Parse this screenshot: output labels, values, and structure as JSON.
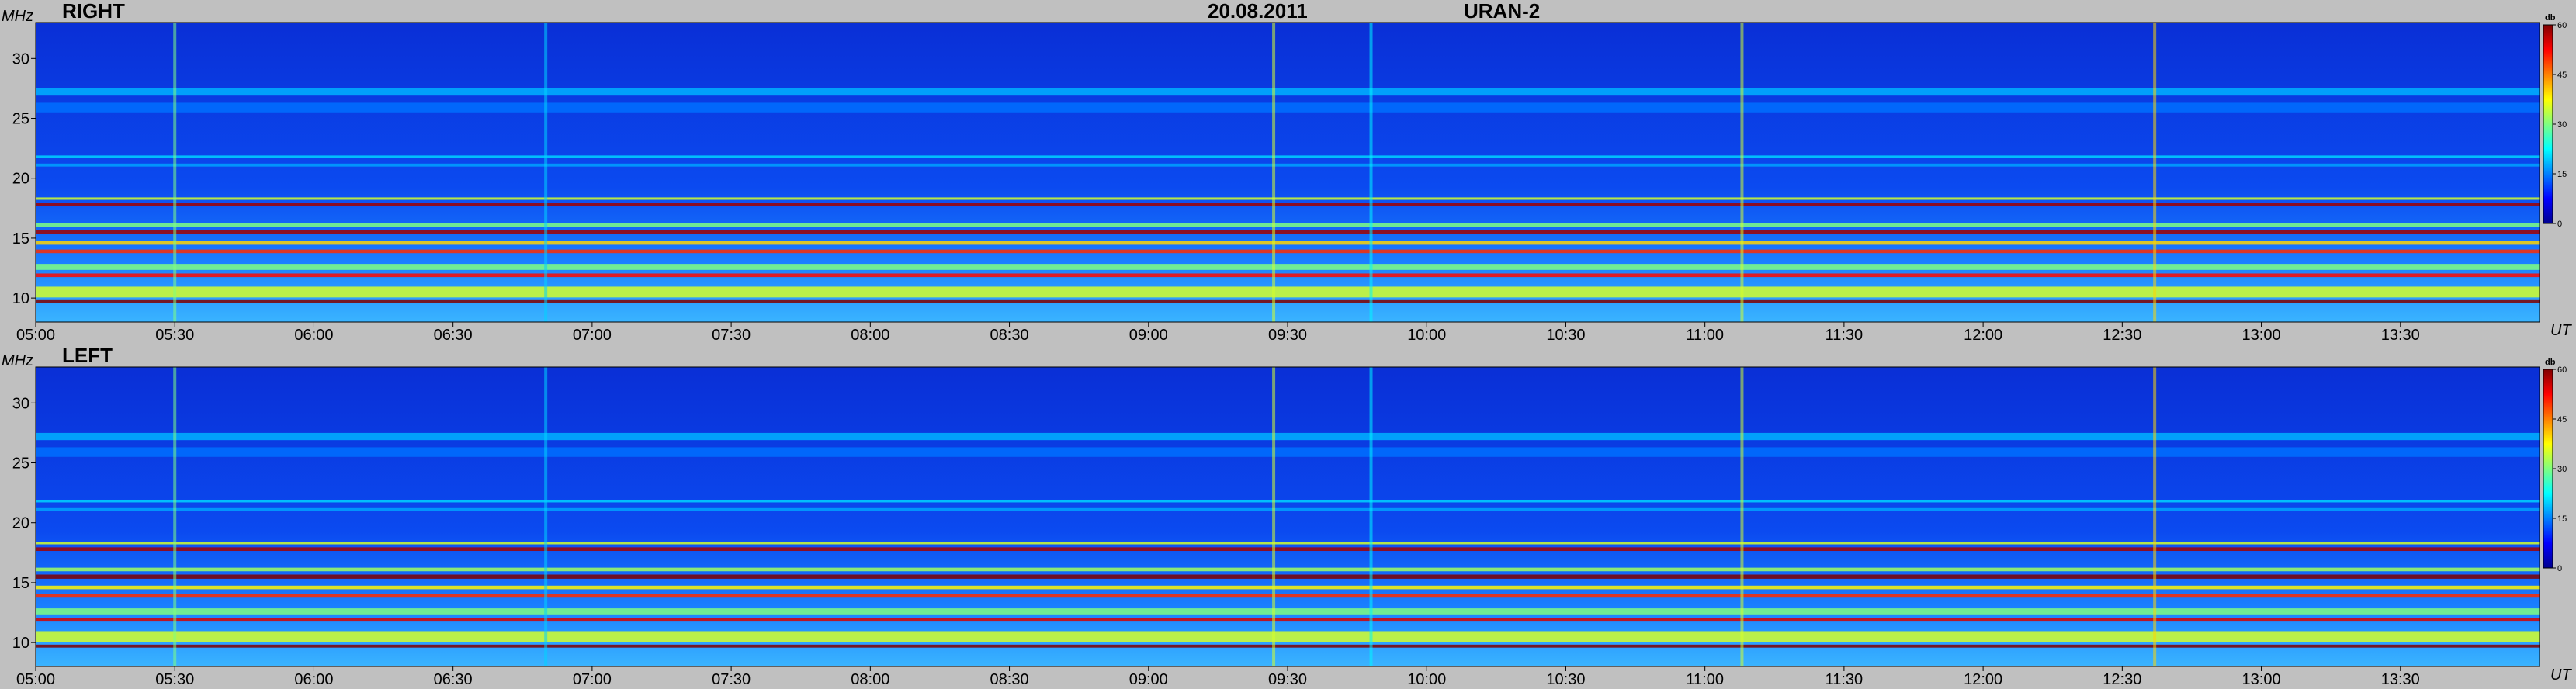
{
  "header": {
    "date": "20.08.2011",
    "instrument": "URAN-2"
  },
  "chart_data": [
    {
      "type": "heatmap",
      "panel": "RIGHT",
      "ylabel": "MHz",
      "xlabel": "UT",
      "x_ticks": [
        "05:00",
        "05:30",
        "06:00",
        "06:30",
        "07:00",
        "07:30",
        "08:00",
        "08:30",
        "09:00",
        "09:30",
        "10:00",
        "10:30",
        "11:00",
        "11:30",
        "12:00",
        "12:30",
        "13:00",
        "13:30"
      ],
      "x_range": [
        "05:00",
        "14:00"
      ],
      "y_ticks": [
        10,
        15,
        20,
        25,
        30
      ],
      "y_range": [
        8,
        33
      ],
      "colorbar": {
        "unit": "db",
        "ticks": [
          0,
          15,
          30,
          45,
          60
        ],
        "range": [
          0,
          60
        ]
      },
      "background_db": 7,
      "bands": [
        {
          "freq": 9.7,
          "db": 60,
          "width": 0.25
        },
        {
          "freq": 10.5,
          "db": 35,
          "width": 0.9
        },
        {
          "freq": 11.9,
          "db": 52,
          "width": 0.3
        },
        {
          "freq": 12.6,
          "db": 30,
          "width": 0.5
        },
        {
          "freq": 13.9,
          "db": 50,
          "width": 0.3
        },
        {
          "freq": 14.6,
          "db": 40,
          "width": 0.3
        },
        {
          "freq": 15.5,
          "db": 58,
          "width": 0.35
        },
        {
          "freq": 16.1,
          "db": 30,
          "width": 0.3
        },
        {
          "freq": 17.8,
          "db": 58,
          "width": 0.3
        },
        {
          "freq": 18.3,
          "db": 35,
          "width": 0.2
        },
        {
          "freq": 21.1,
          "db": 17,
          "width": 0.25
        },
        {
          "freq": 21.8,
          "db": 20,
          "width": 0.2
        },
        {
          "freq": 25.9,
          "db": 14,
          "width": 0.8
        },
        {
          "freq": 27.2,
          "db": 18,
          "width": 0.6
        }
      ],
      "bursts": [
        {
          "time": "05:30",
          "db": 30
        },
        {
          "time": "06:50",
          "db": 20
        },
        {
          "time": "09:27",
          "db": 35
        },
        {
          "time": "09:48",
          "db": 22
        },
        {
          "time": "11:08",
          "db": 35
        },
        {
          "time": "12:37",
          "db": 40
        }
      ]
    },
    {
      "type": "heatmap",
      "panel": "LEFT",
      "ylabel": "MHz",
      "xlabel": "UT",
      "x_ticks": [
        "05:00",
        "05:30",
        "06:00",
        "06:30",
        "07:00",
        "07:30",
        "08:00",
        "08:30",
        "09:00",
        "09:30",
        "10:00",
        "10:30",
        "11:00",
        "11:30",
        "12:00",
        "12:30",
        "13:00",
        "13:30"
      ],
      "x_range": [
        "05:00",
        "14:00"
      ],
      "y_ticks": [
        10,
        15,
        20,
        25,
        30
      ],
      "y_range": [
        8,
        33
      ],
      "colorbar": {
        "unit": "db",
        "ticks": [
          0,
          15,
          30,
          45,
          60
        ],
        "range": [
          0,
          60
        ]
      },
      "background_db": 7,
      "bands": [
        {
          "freq": 9.7,
          "db": 60,
          "width": 0.25
        },
        {
          "freq": 10.5,
          "db": 35,
          "width": 0.9
        },
        {
          "freq": 11.9,
          "db": 55,
          "width": 0.3
        },
        {
          "freq": 12.6,
          "db": 30,
          "width": 0.5
        },
        {
          "freq": 13.9,
          "db": 50,
          "width": 0.3
        },
        {
          "freq": 14.6,
          "db": 38,
          "width": 0.3
        },
        {
          "freq": 15.5,
          "db": 60,
          "width": 0.35
        },
        {
          "freq": 16.1,
          "db": 32,
          "width": 0.3
        },
        {
          "freq": 17.8,
          "db": 58,
          "width": 0.3
        },
        {
          "freq": 18.3,
          "db": 35,
          "width": 0.2
        },
        {
          "freq": 21.1,
          "db": 17,
          "width": 0.25
        },
        {
          "freq": 21.8,
          "db": 20,
          "width": 0.2
        },
        {
          "freq": 25.9,
          "db": 14,
          "width": 0.8
        },
        {
          "freq": 27.2,
          "db": 18,
          "width": 0.6
        }
      ],
      "bursts": [
        {
          "time": "05:30",
          "db": 30
        },
        {
          "time": "06:50",
          "db": 20
        },
        {
          "time": "09:27",
          "db": 35
        },
        {
          "time": "09:48",
          "db": 22
        },
        {
          "time": "11:08",
          "db": 35
        },
        {
          "time": "12:37",
          "db": 40
        }
      ]
    }
  ]
}
